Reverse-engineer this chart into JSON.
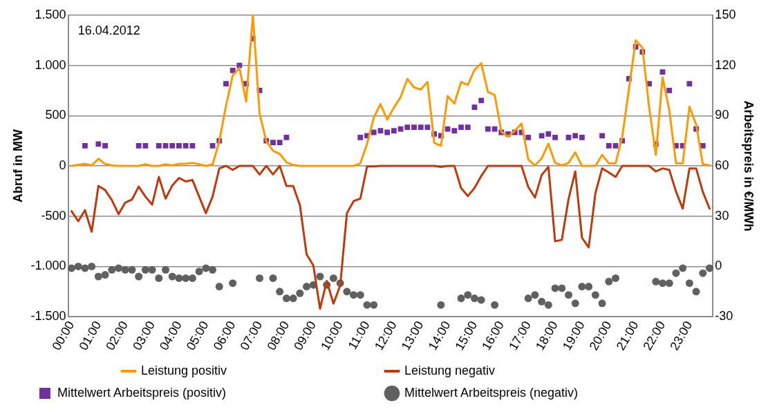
{
  "chart_data": {
    "type": "line",
    "annotations": [
      "16.04.2012"
    ],
    "ylabel": "Abruf in MW",
    "y2label": "Arbeitspreis in €/MWh",
    "categories": [
      "00:00",
      null,
      null,
      null,
      "01:00",
      null,
      null,
      null,
      "02:00",
      null,
      null,
      null,
      "03:00",
      null,
      null,
      null,
      "04:00",
      null,
      null,
      null,
      "05:00",
      null,
      null,
      null,
      "06:00",
      null,
      null,
      null,
      "07:00",
      null,
      null,
      null,
      "08:00",
      null,
      null,
      null,
      "09:00",
      null,
      null,
      null,
      "10:00",
      null,
      null,
      null,
      "11:00",
      null,
      null,
      null,
      "12:00",
      null,
      null,
      null,
      "13:00",
      null,
      null,
      null,
      "14:00",
      null,
      null,
      null,
      "15:00",
      null,
      null,
      null,
      "16:00",
      null,
      null,
      null,
      "17:00",
      null,
      null,
      null,
      "18:00",
      null,
      null,
      null,
      "19:00",
      null,
      null,
      null,
      "20:00",
      null,
      null,
      null,
      "21:00",
      null,
      null,
      null,
      "22:00",
      null,
      null,
      null,
      "23:00",
      null,
      null,
      null
    ],
    "ylim": [
      -1500,
      1500
    ],
    "yticks": [
      {
        "value": -1500,
        "label": "-1.500"
      },
      {
        "value": -1000,
        "label": "-1.000"
      },
      -500,
      0,
      500,
      {
        "value": 1000,
        "label": "1.000"
      },
      {
        "value": 1500,
        "label": "1.500"
      }
    ],
    "y2lim": [
      -30,
      150
    ],
    "y2ticks": [
      -30,
      0,
      30,
      60,
      90,
      120,
      150
    ],
    "grid": "y",
    "legend": "bottom",
    "series": [
      {
        "name": "Leistung positiv",
        "type": "line",
        "marker": "none",
        "color": "#ff9900",
        "values": [
          0,
          10,
          20,
          5,
          70,
          20,
          5,
          0,
          0,
          0,
          0,
          15,
          0,
          0,
          15,
          5,
          20,
          20,
          30,
          15,
          0,
          15,
          245,
          600,
          900,
          975,
          640,
          1500,
          520,
          245,
          150,
          120,
          35,
          10,
          0,
          0,
          0,
          0,
          0,
          0,
          0,
          0,
          0,
          25,
          220,
          480,
          615,
          460,
          580,
          685,
          865,
          780,
          760,
          835,
          230,
          200,
          695,
          620,
          835,
          805,
          955,
          1020,
          735,
          705,
          340,
          290,
          350,
          420,
          65,
          5,
          75,
          220,
          30,
          5,
          30,
          135,
          0,
          0,
          0,
          110,
          25,
          25,
          290,
          770,
          1250,
          1175,
          580,
          110,
          880,
          555,
          25,
          25,
          590,
          410,
          15,
          5
        ]
      },
      {
        "name": "Leistung negativ",
        "type": "line",
        "marker": "none",
        "color": "#c0390b",
        "values": [
          -450,
          -550,
          -440,
          -655,
          -200,
          -240,
          -340,
          -480,
          -365,
          -335,
          -205,
          -305,
          -385,
          -110,
          -325,
          -195,
          -120,
          -155,
          -140,
          -305,
          -470,
          -305,
          -25,
          0,
          -40,
          0,
          0,
          0,
          -85,
          0,
          -85,
          0,
          -200,
          -200,
          -390,
          -880,
          -990,
          -1420,
          -1145,
          -1370,
          -1190,
          -470,
          -350,
          -325,
          -5,
          -5,
          0,
          0,
          0,
          0,
          0,
          0,
          0,
          0,
          0,
          -10,
          0,
          0,
          -220,
          -300,
          -220,
          -100,
          0,
          0,
          0,
          0,
          0,
          0,
          -210,
          -315,
          -90,
          -10,
          -750,
          -735,
          -330,
          -55,
          -715,
          -810,
          -270,
          -25,
          -65,
          -110,
          0,
          0,
          0,
          0,
          0,
          -55,
          -25,
          -40,
          -255,
          -425,
          -25,
          -25,
          -260,
          -425
        ]
      },
      {
        "name": "Mittelwert Arbeitspreis (positiv)",
        "type": "scatter",
        "marker": "square",
        "axis": "y2",
        "color": "#7030a0",
        "values": [
          null,
          null,
          72,
          null,
          73,
          72,
          null,
          null,
          null,
          null,
          72,
          72,
          null,
          72,
          72,
          72,
          72,
          72,
          72,
          null,
          null,
          72,
          75,
          109,
          117,
          120,
          109,
          136,
          105,
          75,
          74,
          74,
          77,
          null,
          null,
          null,
          null,
          null,
          null,
          null,
          null,
          null,
          null,
          77,
          78,
          80,
          81,
          80,
          81,
          82,
          83,
          83,
          83,
          83,
          79,
          78,
          82,
          81,
          83,
          83,
          95,
          99,
          82,
          82,
          80,
          79,
          80,
          80,
          77,
          null,
          78,
          79,
          77,
          null,
          77,
          78,
          77,
          null,
          null,
          78,
          72,
          72,
          75,
          112,
          131,
          128,
          109,
          73,
          116,
          105,
          72,
          72,
          109,
          82,
          72,
          null
        ]
      },
      {
        "name": "Mittelwert Arbeitspreis (negativ)",
        "type": "scatter",
        "marker": "circle",
        "axis": "y2",
        "color": "#606060",
        "values": [
          -1,
          0,
          -1,
          0,
          -6,
          -5,
          -2,
          -1,
          -2,
          -2,
          -6,
          -2,
          -2,
          -7,
          -2,
          -6,
          -7,
          -7,
          -7,
          -3,
          -1,
          -2,
          -12,
          null,
          -10,
          null,
          null,
          null,
          -7,
          null,
          -7,
          -15,
          -19,
          -19,
          -16,
          -12,
          -11,
          -6,
          -11,
          -7,
          -10,
          -15,
          -17,
          -17,
          -23,
          -23,
          null,
          null,
          null,
          null,
          null,
          null,
          null,
          null,
          null,
          -23,
          null,
          null,
          -19,
          -17,
          -19,
          -20,
          null,
          -23,
          null,
          null,
          null,
          null,
          -19,
          -17,
          -21,
          -23,
          -13,
          -13,
          -17,
          -22,
          -12,
          -12,
          -17,
          -22,
          -9,
          -7,
          null,
          null,
          null,
          null,
          null,
          -9,
          -10,
          -10,
          -4,
          -1,
          -10,
          -15,
          -4,
          -1
        ]
      }
    ]
  }
}
